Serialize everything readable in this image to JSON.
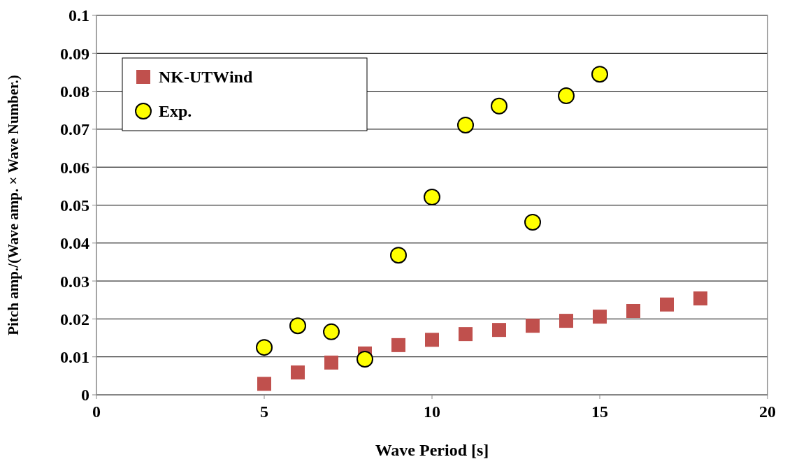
{
  "chart_data": {
    "type": "scatter",
    "xlabel": "Wave Period [s]",
    "ylabel": "Pitch amp./(Wave amp. × Wave Number.)",
    "xlim": [
      0,
      20
    ],
    "xticks": [
      0,
      5,
      10,
      15,
      20
    ],
    "ylim": [
      0,
      0.1
    ],
    "yticks": [
      0,
      0.01,
      0.02,
      0.03,
      0.04,
      0.05,
      0.06,
      0.07,
      0.08,
      0.09,
      0.1
    ],
    "grid": "y",
    "legend": "top left",
    "series": [
      {
        "name": "NK-UTWind",
        "color": "#c0504d",
        "marker": "square",
        "x": [
          5,
          6,
          7,
          8,
          9,
          10,
          11,
          12,
          13,
          14,
          15,
          16,
          17,
          18
        ],
        "values": [
          0.0029,
          0.0059,
          0.0085,
          0.0109,
          0.0131,
          0.0145,
          0.016,
          0.0171,
          0.0182,
          0.0195,
          0.0206,
          0.0221,
          0.0238,
          0.0254
        ]
      },
      {
        "name": "Exp.",
        "color": "#ffff00",
        "marker": "circle",
        "x": [
          5,
          6,
          7,
          8,
          9,
          10,
          11,
          12,
          13,
          14,
          15
        ],
        "values": [
          0.0125,
          0.0182,
          0.0166,
          0.0094,
          0.0368,
          0.0521,
          0.0711,
          0.0761,
          0.0455,
          0.0788,
          0.0845
        ]
      }
    ]
  }
}
